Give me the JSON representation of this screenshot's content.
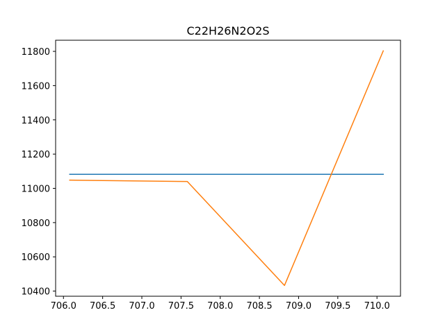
{
  "chart_data": {
    "type": "line",
    "title": "C22H26N2O2S",
    "xlabel": "",
    "ylabel": "",
    "xlim": [
      705.9,
      710.3
    ],
    "ylim": [
      10370,
      11865
    ],
    "grid": false,
    "xticks": [
      706.0,
      706.5,
      707.0,
      707.5,
      708.0,
      708.5,
      709.0,
      709.5,
      710.0
    ],
    "xtick_labels": [
      "706.0",
      "706.5",
      "707.0",
      "707.5",
      "708.0",
      "708.5",
      "709.0",
      "709.5",
      "710.0"
    ],
    "yticks": [
      10400,
      10600,
      10800,
      11000,
      11200,
      11400,
      11600,
      11800
    ],
    "ytick_labels": [
      "10400",
      "10600",
      "10800",
      "11000",
      "11200",
      "11400",
      "11600",
      "11800"
    ],
    "series": [
      {
        "color": "#1f77b4",
        "x": [
          706.08,
          710.08
        ],
        "values": [
          11082,
          11082
        ]
      },
      {
        "color": "#ff7f0e",
        "x": [
          706.08,
          707.58,
          708.82,
          710.08
        ],
        "values": [
          11048,
          11040,
          10433,
          11803
        ]
      }
    ]
  }
}
